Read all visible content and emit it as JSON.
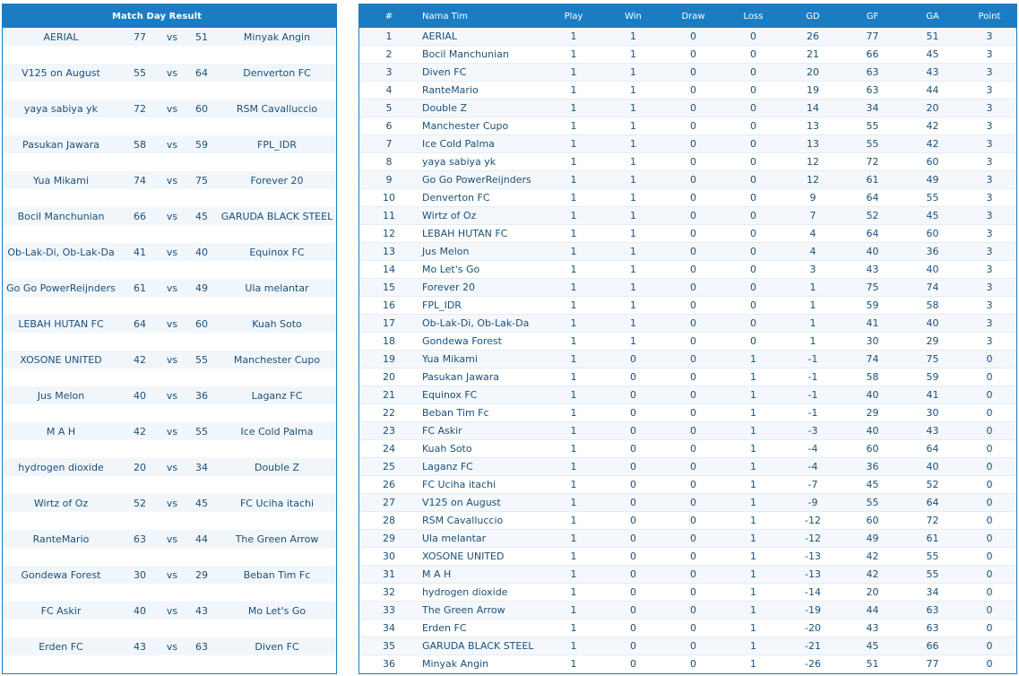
{
  "results": {
    "title": "Match Day Result",
    "vs_label": "vs",
    "matches": [
      {
        "home": "AERIAL",
        "home_score": "77",
        "away_score": "51",
        "away": "Minyak Angin"
      },
      {
        "home": "V125 on August",
        "home_score": "55",
        "away_score": "64",
        "away": "Denverton FC"
      },
      {
        "home": "yaya sabiya yk",
        "home_score": "72",
        "away_score": "60",
        "away": "RSM Cavalluccio"
      },
      {
        "home": "Pasukan Jawara",
        "home_score": "58",
        "away_score": "59",
        "away": "FPL_IDR"
      },
      {
        "home": "Yua Mikami",
        "home_score": "74",
        "away_score": "75",
        "away": "Forever 20"
      },
      {
        "home": "Bocil Manchunian",
        "home_score": "66",
        "away_score": "45",
        "away": "GARUDA BLACK STEEL"
      },
      {
        "home": "Ob-Lak-Di, Ob-Lak-Da",
        "home_score": "41",
        "away_score": "40",
        "away": "Equinox FC"
      },
      {
        "home": "Go Go PowerReijnders",
        "home_score": "61",
        "away_score": "49",
        "away": "Ula melantar"
      },
      {
        "home": "LEBAH HUTAN FC",
        "home_score": "64",
        "away_score": "60",
        "away": "Kuah Soto"
      },
      {
        "home": "XOSONE UNITED",
        "home_score": "42",
        "away_score": "55",
        "away": "Manchester Cupo"
      },
      {
        "home": "Jus Melon",
        "home_score": "40",
        "away_score": "36",
        "away": "Laganz FC"
      },
      {
        "home": "M A H",
        "home_score": "42",
        "away_score": "55",
        "away": "Ice Cold Palma"
      },
      {
        "home": "hydrogen dioxide",
        "home_score": "20",
        "away_score": "34",
        "away": "Double Z"
      },
      {
        "home": "Wirtz of Oz",
        "home_score": "52",
        "away_score": "45",
        "away": "FC Uciha itachi"
      },
      {
        "home": "RanteMario",
        "home_score": "63",
        "away_score": "44",
        "away": "The Green Arrow"
      },
      {
        "home": "Gondewa Forest",
        "home_score": "30",
        "away_score": "29",
        "away": "Beban Tim Fc"
      },
      {
        "home": "FC Askir",
        "home_score": "40",
        "away_score": "43",
        "away": "Mo Let's Go"
      },
      {
        "home": "Erden FC",
        "home_score": "43",
        "away_score": "63",
        "away": "Diven FC"
      }
    ]
  },
  "standings": {
    "headers": {
      "rank": "#",
      "team": "Nama Tim",
      "play": "Play",
      "win": "Win",
      "draw": "Draw",
      "loss": "Loss",
      "gd": "GD",
      "gf": "GF",
      "ga": "GA",
      "point": "Point"
    },
    "rows": [
      [
        "1",
        "AERIAL",
        "1",
        "1",
        "0",
        "0",
        "26",
        "77",
        "51",
        "3"
      ],
      [
        "2",
        "Bocil Manchunian",
        "1",
        "1",
        "0",
        "0",
        "21",
        "66",
        "45",
        "3"
      ],
      [
        "3",
        "Diven FC",
        "1",
        "1",
        "0",
        "0",
        "20",
        "63",
        "43",
        "3"
      ],
      [
        "4",
        "RanteMario",
        "1",
        "1",
        "0",
        "0",
        "19",
        "63",
        "44",
        "3"
      ],
      [
        "5",
        "Double Z",
        "1",
        "1",
        "0",
        "0",
        "14",
        "34",
        "20",
        "3"
      ],
      [
        "6",
        "Manchester Cupo",
        "1",
        "1",
        "0",
        "0",
        "13",
        "55",
        "42",
        "3"
      ],
      [
        "7",
        "Ice Cold Palma",
        "1",
        "1",
        "0",
        "0",
        "13",
        "55",
        "42",
        "3"
      ],
      [
        "8",
        "yaya sabiya yk",
        "1",
        "1",
        "0",
        "0",
        "12",
        "72",
        "60",
        "3"
      ],
      [
        "9",
        "Go Go PowerReijnders",
        "1",
        "1",
        "0",
        "0",
        "12",
        "61",
        "49",
        "3"
      ],
      [
        "10",
        "Denverton FC",
        "1",
        "1",
        "0",
        "0",
        "9",
        "64",
        "55",
        "3"
      ],
      [
        "11",
        "Wirtz of Oz",
        "1",
        "1",
        "0",
        "0",
        "7",
        "52",
        "45",
        "3"
      ],
      [
        "12",
        "LEBAH HUTAN FC",
        "1",
        "1",
        "0",
        "0",
        "4",
        "64",
        "60",
        "3"
      ],
      [
        "13",
        "Jus Melon",
        "1",
        "1",
        "0",
        "0",
        "4",
        "40",
        "36",
        "3"
      ],
      [
        "14",
        "Mo Let's Go",
        "1",
        "1",
        "0",
        "0",
        "3",
        "43",
        "40",
        "3"
      ],
      [
        "15",
        "Forever 20",
        "1",
        "1",
        "0",
        "0",
        "1",
        "75",
        "74",
        "3"
      ],
      [
        "16",
        "FPL_IDR",
        "1",
        "1",
        "0",
        "0",
        "1",
        "59",
        "58",
        "3"
      ],
      [
        "17",
        "Ob-Lak-Di, Ob-Lak-Da",
        "1",
        "1",
        "0",
        "0",
        "1",
        "41",
        "40",
        "3"
      ],
      [
        "18",
        "Gondewa Forest",
        "1",
        "1",
        "0",
        "0",
        "1",
        "30",
        "29",
        "3"
      ],
      [
        "19",
        "Yua Mikami",
        "1",
        "0",
        "0",
        "1",
        "-1",
        "74",
        "75",
        "0"
      ],
      [
        "20",
        "Pasukan Jawara",
        "1",
        "0",
        "0",
        "1",
        "-1",
        "58",
        "59",
        "0"
      ],
      [
        "21",
        "Equinox FC",
        "1",
        "0",
        "0",
        "1",
        "-1",
        "40",
        "41",
        "0"
      ],
      [
        "22",
        "Beban Tim Fc",
        "1",
        "0",
        "0",
        "1",
        "-1",
        "29",
        "30",
        "0"
      ],
      [
        "23",
        "FC Askir",
        "1",
        "0",
        "0",
        "1",
        "-3",
        "40",
        "43",
        "0"
      ],
      [
        "24",
        "Kuah Soto",
        "1",
        "0",
        "0",
        "1",
        "-4",
        "60",
        "64",
        "0"
      ],
      [
        "25",
        "Laganz FC",
        "1",
        "0",
        "0",
        "1",
        "-4",
        "36",
        "40",
        "0"
      ],
      [
        "26",
        "FC Uciha itachi",
        "1",
        "0",
        "0",
        "1",
        "-7",
        "45",
        "52",
        "0"
      ],
      [
        "27",
        "V125 on August",
        "1",
        "0",
        "0",
        "1",
        "-9",
        "55",
        "64",
        "0"
      ],
      [
        "28",
        "RSM Cavalluccio",
        "1",
        "0",
        "0",
        "1",
        "-12",
        "60",
        "72",
        "0"
      ],
      [
        "29",
        "Ula melantar",
        "1",
        "0",
        "0",
        "1",
        "-12",
        "49",
        "61",
        "0"
      ],
      [
        "30",
        "XOSONE UNITED",
        "1",
        "0",
        "0",
        "1",
        "-13",
        "42",
        "55",
        "0"
      ],
      [
        "31",
        "M A H",
        "1",
        "0",
        "0",
        "1",
        "-13",
        "42",
        "55",
        "0"
      ],
      [
        "32",
        "hydrogen dioxide",
        "1",
        "0",
        "0",
        "1",
        "-14",
        "20",
        "34",
        "0"
      ],
      [
        "33",
        "The Green Arrow",
        "1",
        "0",
        "0",
        "1",
        "-19",
        "44",
        "63",
        "0"
      ],
      [
        "34",
        "Erden FC",
        "1",
        "0",
        "0",
        "1",
        "-20",
        "43",
        "63",
        "0"
      ],
      [
        "35",
        "GARUDA BLACK STEEL",
        "1",
        "0",
        "0",
        "1",
        "-21",
        "45",
        "66",
        "0"
      ],
      [
        "36",
        "Minyak Angin",
        "1",
        "0",
        "0",
        "1",
        "-26",
        "51",
        "77",
        "0"
      ]
    ]
  },
  "colors": {
    "header_bg": "#1a7dc4",
    "text": "#1c4f78",
    "row_alt": "#f1f6fb"
  }
}
